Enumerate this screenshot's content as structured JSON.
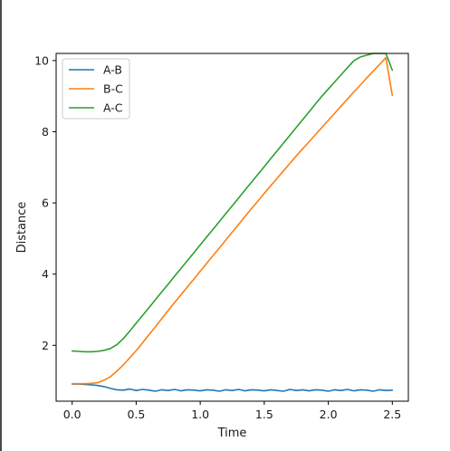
{
  "chart_data": {
    "type": "line",
    "title": "",
    "xlabel": "Time",
    "ylabel": "Distance",
    "xlim": [
      -0.125,
      2.625
    ],
    "ylim": [
      0.43,
      10.2
    ],
    "xticks": [
      0.0,
      0.5,
      1.0,
      1.5,
      2.0,
      2.5
    ],
    "xtick_labels": [
      "0.0",
      "0.5",
      "1.0",
      "1.5",
      "2.0",
      "2.5"
    ],
    "yticks": [
      2,
      4,
      6,
      8,
      10
    ],
    "ytick_labels": [
      "2",
      "4",
      "6",
      "8",
      "10"
    ],
    "grid": false,
    "legend_position": "top-left",
    "x": [
      0.0,
      0.05,
      0.1,
      0.15,
      0.2,
      0.25,
      0.3,
      0.35,
      0.4,
      0.45,
      0.5,
      0.55,
      0.6,
      0.65,
      0.7,
      0.75,
      0.8,
      0.85,
      0.9,
      0.95,
      1.0,
      1.05,
      1.1,
      1.15,
      1.2,
      1.25,
      1.3,
      1.35,
      1.4,
      1.45,
      1.5,
      1.55,
      1.6,
      1.65,
      1.7,
      1.75,
      1.8,
      1.85,
      1.9,
      1.95,
      2.0,
      2.05,
      2.1,
      2.15,
      2.2,
      2.25,
      2.3,
      2.35,
      2.4,
      2.45,
      2.5
    ],
    "series": [
      {
        "name": "A-B",
        "color": "#1f77b4",
        "values": [
          0.91,
          0.91,
          0.9,
          0.89,
          0.87,
          0.84,
          0.79,
          0.75,
          0.74,
          0.77,
          0.73,
          0.76,
          0.74,
          0.71,
          0.75,
          0.73,
          0.76,
          0.72,
          0.75,
          0.74,
          0.72,
          0.75,
          0.74,
          0.71,
          0.75,
          0.73,
          0.76,
          0.72,
          0.75,
          0.74,
          0.72,
          0.75,
          0.73,
          0.71,
          0.76,
          0.73,
          0.75,
          0.72,
          0.75,
          0.74,
          0.71,
          0.75,
          0.73,
          0.76,
          0.72,
          0.75,
          0.74,
          0.71,
          0.75,
          0.73,
          0.74
        ]
      },
      {
        "name": "B-C",
        "color": "#ff7f0e",
        "values": [
          0.92,
          0.92,
          0.92,
          0.93,
          0.95,
          1.02,
          1.12,
          1.28,
          1.45,
          1.65,
          1.85,
          2.07,
          2.3,
          2.52,
          2.75,
          2.98,
          3.2,
          3.42,
          3.64,
          3.86,
          4.08,
          4.3,
          4.52,
          4.74,
          4.96,
          5.18,
          5.4,
          5.62,
          5.84,
          6.05,
          6.27,
          6.48,
          6.69,
          6.9,
          7.11,
          7.32,
          7.52,
          7.72,
          7.92,
          8.12,
          8.32,
          8.52,
          8.72,
          8.92,
          9.12,
          9.31,
          9.51,
          9.7,
          9.89,
          10.08,
          9.02
        ]
      },
      {
        "name": "A-C",
        "color": "#2ca02c",
        "values": [
          1.84,
          1.83,
          1.82,
          1.82,
          1.83,
          1.86,
          1.91,
          2.02,
          2.19,
          2.4,
          2.62,
          2.84,
          3.06,
          3.28,
          3.5,
          3.72,
          3.94,
          4.16,
          4.38,
          4.6,
          4.82,
          5.04,
          5.26,
          5.48,
          5.7,
          5.92,
          6.14,
          6.36,
          6.58,
          6.8,
          7.02,
          7.24,
          7.46,
          7.68,
          7.9,
          8.12,
          8.34,
          8.56,
          8.78,
          9.0,
          9.2,
          9.4,
          9.6,
          9.8,
          10.0,
          10.1,
          10.15,
          10.2,
          10.2,
          10.2,
          9.73
        ]
      }
    ]
  }
}
